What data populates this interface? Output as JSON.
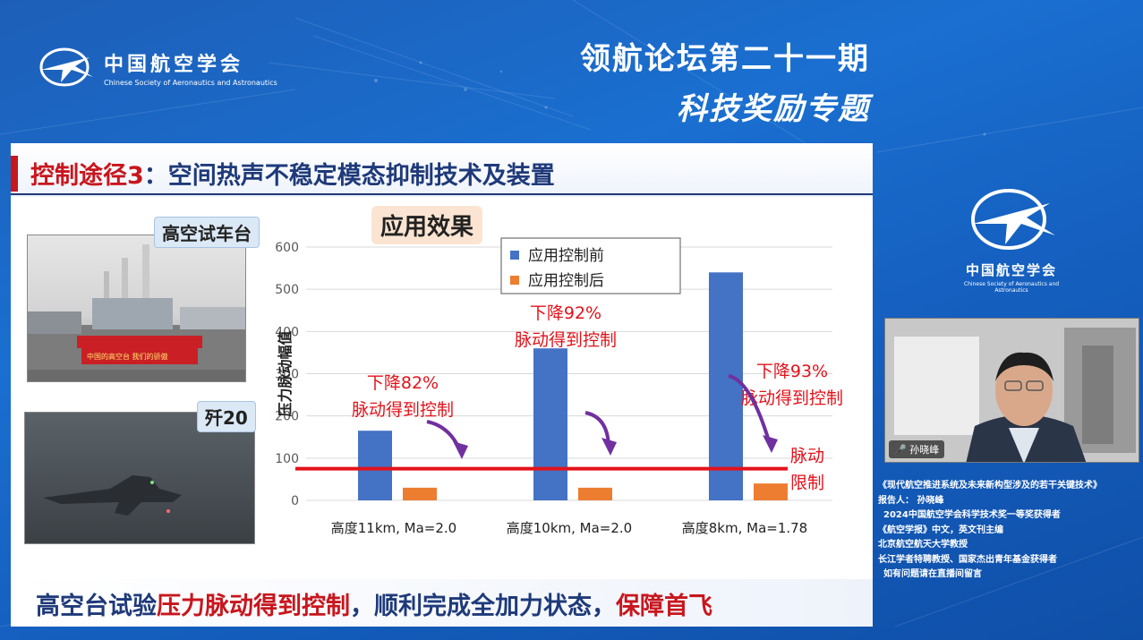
{
  "header": {
    "org_cn": "中国航空学会",
    "org_en": "Chinese Society of Aeronautics and Astronautics",
    "forum_title": "领航论坛第二十一期",
    "forum_subtitle": "科技奖励专题"
  },
  "slide": {
    "title_prefix": "控制途径3",
    "title_rest": "：空间热声不稳定模态抑制技术及装置",
    "tag_test_bench": "高空试车台",
    "tag_aircraft": "歼20",
    "photo_banner": "中国的高空台 我们的骄傲",
    "effect_label": "应用效果",
    "bottom_text_a": "高空台试验",
    "bottom_text_red": "压力脉动得到控制",
    "bottom_text_b": "，顺利完成全加力状态，",
    "bottom_text_c": "保障首飞"
  },
  "chart_data": {
    "type": "bar",
    "categories": [
      "高度11km, Ma=2.0",
      "高度10km, Ma=2.0",
      "高度8km, Ma=1.78"
    ],
    "series": [
      {
        "name": "应用控制前",
        "values": [
          165,
          360,
          540
        ],
        "color": "#4472c4"
      },
      {
        "name": "应用控制后",
        "values": [
          30,
          30,
          40
        ],
        "color": "#ed7d31"
      }
    ],
    "ylabel": "压力脉动幅值",
    "ylim": [
      0,
      600
    ],
    "yticks": [
      0,
      100,
      200,
      300,
      400,
      500,
      600
    ],
    "grid": true,
    "legend": "top-left",
    "limit_line": {
      "value": 75,
      "label_line1": "脉动",
      "label_line2": "限制",
      "color": "#e3121a"
    },
    "annotations": [
      {
        "line1": "下降82%",
        "line2": "脉动得到控制"
      },
      {
        "line1": "下降92%",
        "line2": "脉动得到控制"
      },
      {
        "line1": "下降93%",
        "line2": "脉动得到控制"
      }
    ]
  },
  "sidebar": {
    "org_cn": "中国航空学会",
    "org_en": "Chinese Society of Aeronautics and Astronautics",
    "speaker_name": "孙晓峰",
    "talk_title": "《现代航空推进系统及未来新构型涉及的若干关键技术》",
    "reporter": "报告人：  孙晓峰",
    "bio": [
      "2024中国航空学会科学技术奖一等奖获得者",
      "《航空学报》中文，英文刊主编",
      "北京航空航天大学教授",
      "长江学者特聘教授、国家杰出青年基金获得者"
    ],
    "notice": "如有问题请在直播间留言"
  }
}
